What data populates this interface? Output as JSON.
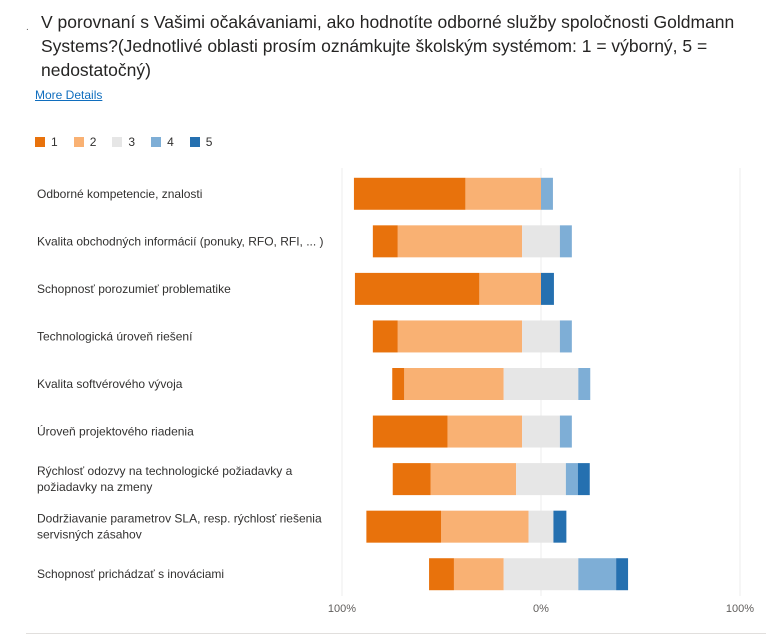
{
  "question": {
    "bullet": ".",
    "text": "V porovnaní s Vašimi očakávaniami, ako hodnotíte odborné služby spoločnosti Goldmann Systems?(Jednotlivé oblasti prosím oznámkujte školským systémom: 1 = výborný, 5 = nedostatočný)",
    "more_details": "More Details"
  },
  "chart_data": {
    "type": "bar",
    "subtype": "diverging-stacked-horizontal",
    "legend": [
      {
        "label": "1",
        "color": "#e8720c"
      },
      {
        "label": "2",
        "color": "#f9b173"
      },
      {
        "label": "3",
        "color": "#e6e6e6"
      },
      {
        "label": "4",
        "color": "#7eaed6"
      },
      {
        "label": "5",
        "color": "#2570b0"
      }
    ],
    "axis_ticks": [
      "100%",
      "0%",
      "100%"
    ],
    "xlim": [
      -100,
      100
    ],
    "categories": [
      "Odborné kompetencie, znalosti",
      "Kvalita obchodných informácií (ponuky, RFO, RFI, ... )",
      "Schopnosť porozumieť problematike",
      "Technologická úroveň riešení",
      "Kvalita softvérového vývoja",
      "Úroveň projektového riadenia",
      "Rýchlosť odozvy na technologické požiadavky a požiadavky na zmeny",
      "Dodržiavanie parametrov SLA, resp. rýchlosť riešenia servisných zásahov",
      "Schopnosť prichádzať s inováciami"
    ],
    "series": [
      {
        "name": "1",
        "values": [
          56,
          12.5,
          62.5,
          12.5,
          6,
          37.5,
          19,
          37.5,
          12.5
        ]
      },
      {
        "name": "2",
        "values": [
          38,
          62.5,
          31,
          62.5,
          50,
          37.5,
          43,
          44,
          25
        ]
      },
      {
        "name": "3",
        "values": [
          0,
          19,
          0,
          19,
          37.5,
          19,
          25,
          12.5,
          37.5
        ]
      },
      {
        "name": "4",
        "values": [
          6,
          6,
          0,
          6,
          6,
          6,
          6,
          0,
          19
        ]
      },
      {
        "name": "5",
        "values": [
          0,
          0,
          6.5,
          0,
          0,
          0,
          6,
          6.5,
          6
        ]
      }
    ]
  }
}
